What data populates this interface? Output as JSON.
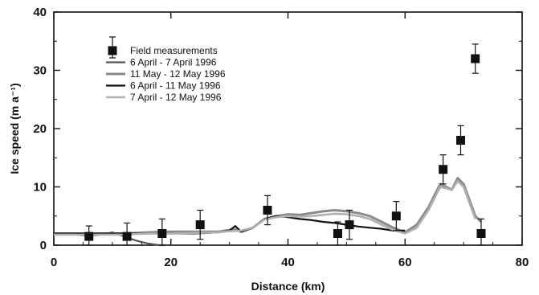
{
  "chart_data": {
    "type": "line",
    "title": "",
    "xlabel": "Distance (km)",
    "ylabel": "Ice speed (m a⁻¹)",
    "xlim": [
      0,
      80
    ],
    "ylim": [
      0,
      40
    ],
    "x_ticks": [
      "0",
      "20",
      "40",
      "60",
      "80"
    ],
    "y_ticks": [
      "0",
      "10",
      "20",
      "30",
      "40"
    ],
    "grid": false,
    "legend_position": "top-left",
    "legend": [
      "Field measurements",
      "6 April - 7 April 1996",
      "11 May - 12 May 1996",
      "6 April - 11 May 1996",
      "7 April - 12 May 1996"
    ],
    "field_measurements": {
      "name": "Field measurements",
      "marker": "square",
      "points": [
        {
          "x": 6,
          "y": 1.5,
          "err": 1.8
        },
        {
          "x": 12.5,
          "y": 1.5,
          "err": 2.3
        },
        {
          "x": 18.5,
          "y": 2.0,
          "err": 2.5
        },
        {
          "x": 25,
          "y": 3.5,
          "err": 2.5
        },
        {
          "x": 36.5,
          "y": 6.0,
          "err": 2.5
        },
        {
          "x": 48.5,
          "y": 2.0,
          "err": 2.0
        },
        {
          "x": 50.5,
          "y": 3.5,
          "err": 2.5
        },
        {
          "x": 58.5,
          "y": 5.0,
          "err": 2.5
        },
        {
          "x": 66.5,
          "y": 13.0,
          "err": 2.5
        },
        {
          "x": 69.5,
          "y": 18.0,
          "err": 2.5
        },
        {
          "x": 72,
          "y": 32.0,
          "err": 2.5
        },
        {
          "x": 73,
          "y": 2.0,
          "err": 2.5
        }
      ]
    },
    "series": [
      {
        "name": "6 April - 7 April 1996",
        "color": "#555555",
        "width": 2.2,
        "x": [
          0,
          2,
          4,
          6,
          8,
          10,
          12,
          14,
          16,
          18,
          19
        ],
        "y": [
          2.0,
          2.0,
          1.8,
          1.6,
          1.8,
          2.2,
          1.5,
          0.8,
          0.3,
          0.0,
          0.0
        ]
      },
      {
        "name": "11 May - 12 May 1996",
        "color": "#8a8a8a",
        "width": 3,
        "x": [
          0,
          4,
          8,
          12,
          16,
          20,
          24,
          28,
          30,
          31,
          32,
          34,
          36,
          38,
          40,
          42,
          44,
          46,
          48,
          50,
          52,
          54,
          56,
          58,
          60,
          62,
          64,
          66,
          67,
          68,
          69,
          70,
          72,
          73
        ],
        "y": [
          2.0,
          2.0,
          2.0,
          2.0,
          2.2,
          2.3,
          2.3,
          2.3,
          2.6,
          2.7,
          2.3,
          3.0,
          4.5,
          5.0,
          5.3,
          5.2,
          5.5,
          5.8,
          6.0,
          5.8,
          5.5,
          5.0,
          4.0,
          3.0,
          2.2,
          3.5,
          6.5,
          10.5,
          10.0,
          9.5,
          11.5,
          10.5,
          5.0,
          4.0
        ]
      },
      {
        "name": "6 April - 11 May 1996",
        "color": "#111111",
        "width": 2.2,
        "x": [
          0,
          4,
          8,
          12,
          16,
          20,
          24,
          28,
          30,
          31,
          32,
          34,
          36,
          38,
          40,
          42,
          44,
          46,
          48,
          50,
          52,
          54,
          56,
          58,
          60
        ],
        "y": [
          2.0,
          2.0,
          2.0,
          2.0,
          2.0,
          2.0,
          2.0,
          2.2,
          2.5,
          3.3,
          2.3,
          3.0,
          4.5,
          5.0,
          4.8,
          4.5,
          4.3,
          4.0,
          3.8,
          3.5,
          3.2,
          3.0,
          2.8,
          2.5,
          2.5
        ]
      },
      {
        "name": "7 April - 12 May 1996",
        "color": "#b0b0b0",
        "width": 2.6,
        "x": [
          0,
          4,
          8,
          12,
          16,
          20,
          24,
          28,
          30,
          32,
          34,
          36,
          38,
          40,
          42,
          44,
          46,
          48,
          50,
          52,
          54,
          56,
          58,
          60,
          62,
          64,
          66,
          68,
          69,
          70,
          72
        ],
        "y": [
          1.8,
          1.8,
          1.8,
          1.8,
          2.0,
          2.0,
          2.1,
          2.2,
          2.4,
          2.5,
          3.0,
          4.4,
          4.8,
          5.0,
          4.9,
          5.0,
          5.2,
          5.4,
          5.3,
          5.0,
          4.5,
          3.5,
          2.6,
          2.0,
          3.0,
          6.0,
          10.0,
          9.5,
          11.0,
          10.0,
          4.5
        ]
      }
    ]
  }
}
